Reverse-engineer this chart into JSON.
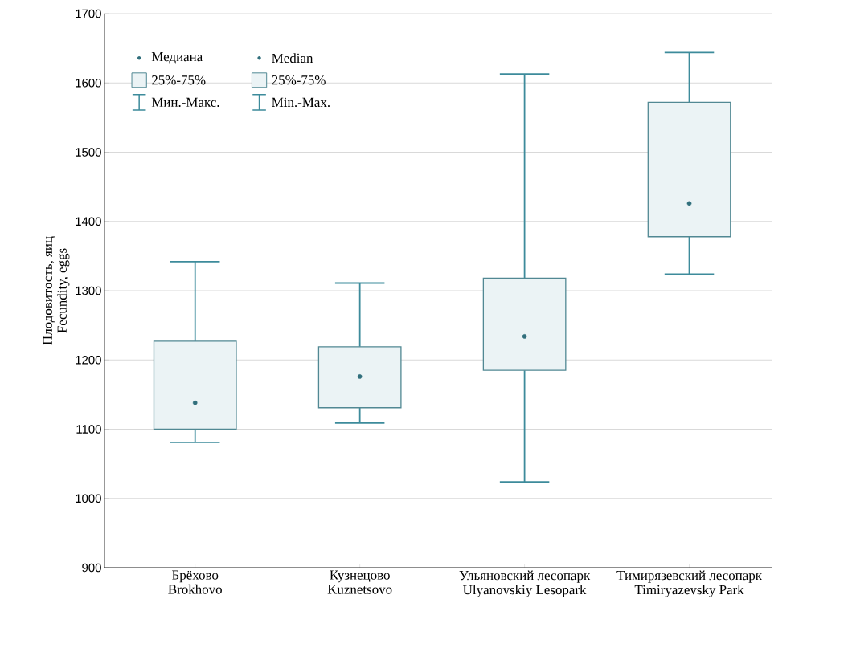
{
  "chart_data": {
    "type": "box",
    "ylabel": "Плодовитость, яиц\nFecundity, eggs",
    "categories": [
      "Брёхово\nBrokhovo",
      "Кузнецово\nKuznetsovo",
      "Ульяновский лесопарк\nUlyanovskiy Lesopark",
      "Тимирязевский лесопарк\nTimiryazevsky Park"
    ],
    "boxes": [
      {
        "low": 1081,
        "q1": 1100,
        "median": 1138,
        "q3": 1227,
        "high": 1342
      },
      {
        "low": 1109,
        "q1": 1131,
        "median": 1176,
        "q3": 1219,
        "high": 1311
      },
      {
        "low": 1024,
        "q1": 1185,
        "median": 1234,
        "q3": 1318,
        "high": 1613
      },
      {
        "low": 1324,
        "q1": 1378,
        "median": 1426,
        "q3": 1572,
        "high": 1644
      }
    ],
    "color": "#ebf3f5",
    "ylim": [
      900,
      1700
    ],
    "yticks": [
      900,
      1000,
      1100,
      1200,
      1300,
      1400,
      1500,
      1600,
      1700
    ],
    "grid": "y",
    "annotations": [
      "Медиана",
      "Median",
      "25%-75%",
      "25%-75%",
      "Мин.-Макс.",
      "Min.-Max."
    ]
  }
}
